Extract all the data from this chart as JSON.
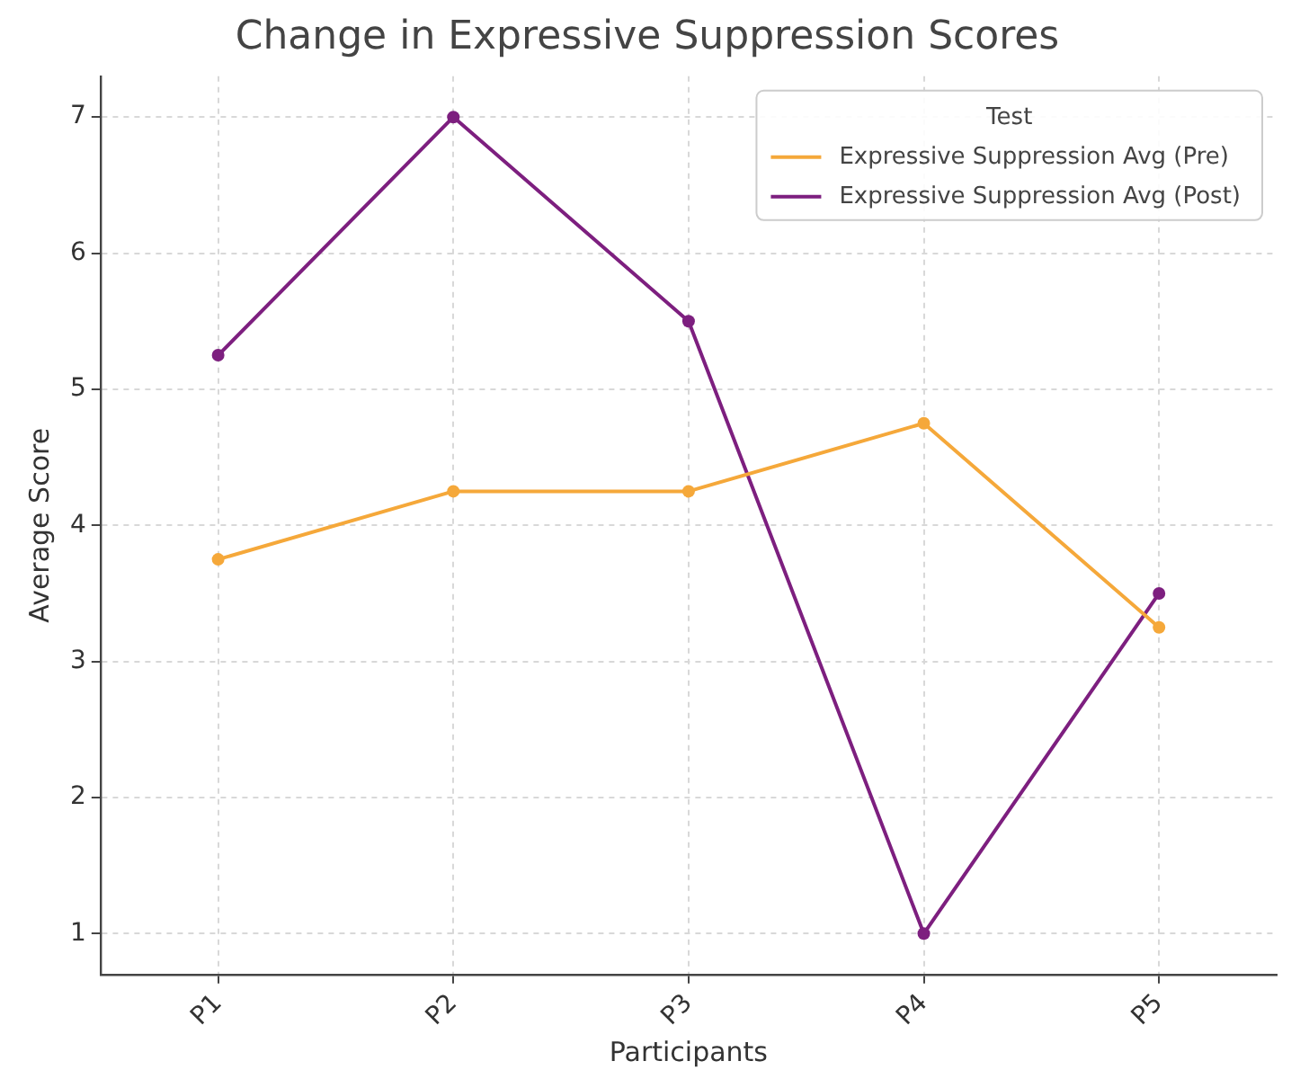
{
  "chart_data": {
    "type": "line",
    "title": "Change in Expressive Suppression Scores",
    "xlabel": "Participants",
    "ylabel": "Average Score",
    "legend_title": "Test",
    "categories": [
      "P1",
      "P2",
      "P3",
      "P4",
      "P5"
    ],
    "series": [
      {
        "name": "Expressive Suppression Avg (Pre)",
        "color": "#f5a83a",
        "values": [
          3.75,
          4.25,
          4.25,
          4.75,
          3.25
        ]
      },
      {
        "name": "Expressive Suppression Avg (Post)",
        "color": "#7d1f7f",
        "values": [
          5.25,
          7,
          5.5,
          1,
          3.5
        ]
      }
    ],
    "ylim": [
      0.7,
      7.3
    ],
    "yticks": [
      1,
      2,
      3,
      4,
      5,
      6,
      7
    ],
    "grid": true,
    "legend": "top right",
    "marker": "circle",
    "line_style": "solid"
  }
}
